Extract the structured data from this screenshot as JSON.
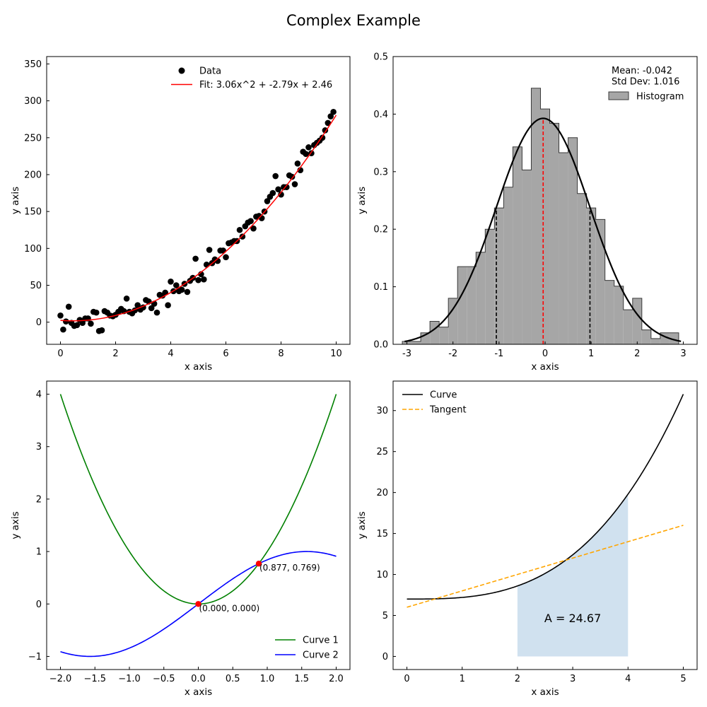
{
  "suptitle": "Complex Example",
  "colors": {
    "data_points": "#000000",
    "fit_line": "#ff0000",
    "hist_fill": "#a6a6a6",
    "hist_edge": "#3a3a3a",
    "normal_curve": "#000000",
    "mean_line": "#ff0000",
    "sd_lines": "#000000",
    "curve1": "#008000",
    "curve2": "#0000ff",
    "intersection": "#ff0000",
    "curve": "#000000",
    "tangent": "#ffa500",
    "area_fill": "#d0e1ef"
  },
  "chart_data": [
    {
      "type": "scatter",
      "xlabel": "x axis",
      "ylabel": "y axis",
      "xlim": [
        -0.5,
        10.5
      ],
      "ylim": [
        -30,
        360
      ],
      "xticks": [
        0,
        2,
        4,
        6,
        8,
        10
      ],
      "yticks": [
        0,
        50,
        100,
        150,
        200,
        250,
        300,
        350
      ],
      "legend_position": "top-right",
      "series": [
        {
          "name": "Data",
          "kind": "scatter",
          "points": [
            [
              0.0,
              9
            ],
            [
              0.1,
              -10
            ],
            [
              0.2,
              1
            ],
            [
              0.3,
              21
            ],
            [
              0.4,
              -1
            ],
            [
              0.5,
              -5
            ],
            [
              0.6,
              -4
            ],
            [
              0.7,
              3
            ],
            [
              0.8,
              -1
            ],
            [
              0.9,
              5
            ],
            [
              1.0,
              5
            ],
            [
              1.1,
              -2
            ],
            [
              1.2,
              14
            ],
            [
              1.3,
              13
            ],
            [
              1.4,
              -12
            ],
            [
              1.5,
              -11
            ],
            [
              1.6,
              15
            ],
            [
              1.7,
              13
            ],
            [
              1.8,
              9
            ],
            [
              1.9,
              8
            ],
            [
              2.0,
              10
            ],
            [
              2.1,
              14
            ],
            [
              2.2,
              18
            ],
            [
              2.3,
              15
            ],
            [
              2.4,
              32
            ],
            [
              2.5,
              14
            ],
            [
              2.6,
              12
            ],
            [
              2.7,
              16
            ],
            [
              2.8,
              23
            ],
            [
              2.9,
              17
            ],
            [
              3.0,
              20
            ],
            [
              3.1,
              30
            ],
            [
              3.2,
              28
            ],
            [
              3.3,
              19
            ],
            [
              3.4,
              25
            ],
            [
              3.5,
              13
            ],
            [
              3.6,
              37
            ],
            [
              3.7,
              36
            ],
            [
              3.8,
              40
            ],
            [
              3.9,
              23
            ],
            [
              4.0,
              55
            ],
            [
              4.1,
              42
            ],
            [
              4.2,
              50
            ],
            [
              4.3,
              42
            ],
            [
              4.4,
              44
            ],
            [
              4.5,
              52
            ],
            [
              4.6,
              41
            ],
            [
              4.7,
              56
            ],
            [
              4.8,
              60
            ],
            [
              4.9,
              86
            ],
            [
              5.0,
              57
            ],
            [
              5.1,
              65
            ],
            [
              5.2,
              58
            ],
            [
              5.3,
              78
            ],
            [
              5.4,
              98
            ],
            [
              5.5,
              80
            ],
            [
              5.6,
              85
            ],
            [
              5.7,
              83
            ],
            [
              5.8,
              97
            ],
            [
              5.9,
              97
            ],
            [
              6.0,
              88
            ],
            [
              6.1,
              107
            ],
            [
              6.2,
              108
            ],
            [
              6.3,
              110
            ],
            [
              6.4,
              110
            ],
            [
              6.5,
              125
            ],
            [
              6.6,
              116
            ],
            [
              6.7,
              130
            ],
            [
              6.8,
              135
            ],
            [
              6.9,
              137
            ],
            [
              7.0,
              127
            ],
            [
              7.1,
              143
            ],
            [
              7.2,
              144
            ],
            [
              7.3,
              141
            ],
            [
              7.4,
              150
            ],
            [
              7.5,
              164
            ],
            [
              7.6,
              170
            ],
            [
              7.7,
              175
            ],
            [
              7.8,
              198
            ],
            [
              7.9,
              180
            ],
            [
              8.0,
              173
            ],
            [
              8.1,
              183
            ],
            [
              8.2,
              183
            ],
            [
              8.3,
              199
            ],
            [
              8.4,
              197
            ],
            [
              8.5,
              187
            ],
            [
              8.6,
              215
            ],
            [
              8.7,
              206
            ],
            [
              8.8,
              231
            ],
            [
              8.9,
              228
            ],
            [
              9.0,
              237
            ],
            [
              9.1,
              229
            ],
            [
              9.2,
              240
            ],
            [
              9.3,
              243
            ],
            [
              9.4,
              246
            ],
            [
              9.5,
              250
            ],
            [
              9.6,
              260
            ],
            [
              9.7,
              270
            ],
            [
              9.8,
              279
            ],
            [
              9.9,
              285
            ]
          ]
        },
        {
          "name": "Fit: 3.06x^2 + -2.79x + 2.46",
          "kind": "line",
          "coefficients": [
            3.06,
            -2.79,
            2.46
          ],
          "x_range": [
            0,
            10
          ]
        }
      ]
    },
    {
      "type": "bar",
      "xlabel": "x axis",
      "ylabel": "y axis",
      "xlim": [
        -3.3,
        3.3
      ],
      "ylim": [
        0,
        0.5
      ],
      "xticks": [
        -3,
        -2,
        -1,
        0,
        1,
        2,
        3
      ],
      "yticks": [
        0.0,
        0.1,
        0.2,
        0.3,
        0.4,
        0.5
      ],
      "legend_position": "top-right",
      "annotations": [
        "Mean: -0.042",
        "Std Dev: 1.016"
      ],
      "mean": -0.042,
      "std": 1.016,
      "bin_start": -3.1,
      "bin_width": 0.2,
      "series": [
        {
          "name": "Histogram",
          "kind": "histogram",
          "values": [
            0.005,
            0.005,
            0.02,
            0.04,
            0.03,
            0.08,
            0.135,
            0.135,
            0.16,
            0.2,
            0.237,
            0.273,
            0.343,
            0.303,
            0.445,
            0.409,
            0.384,
            0.333,
            0.359,
            0.262,
            0.237,
            0.217,
            0.111,
            0.101,
            0.06,
            0.08,
            0.025,
            0.01,
            0.02,
            0.02
          ]
        },
        {
          "name": "",
          "kind": "normal-pdf-line",
          "x_range": [
            -3.05,
            2.95
          ]
        }
      ]
    },
    {
      "type": "line",
      "xlabel": "x axis",
      "ylabel": "y axis",
      "xlim": [
        -2.2,
        2.2
      ],
      "ylim": [
        -1.25,
        4.25
      ],
      "xticks": [
        -2.0,
        -1.5,
        -1.0,
        -0.5,
        0.0,
        0.5,
        1.0,
        1.5,
        2.0
      ],
      "xtick_labels": [
        "−2.0",
        "−1.5",
        "−1.0",
        "−0.5",
        "0.0",
        "0.5",
        "1.0",
        "1.5",
        "2.0"
      ],
      "yticks": [
        -1,
        0,
        1,
        2,
        3,
        4
      ],
      "ytick_labels": [
        "−1",
        "0",
        "1",
        "2",
        "3",
        "4"
      ],
      "legend_position": "bottom-right",
      "series": [
        {
          "name": "Curve 1",
          "kind": "line",
          "function": "x^2",
          "x_range": [
            -2,
            2
          ]
        },
        {
          "name": "Curve 2",
          "kind": "line",
          "function": "sin(x)",
          "x_range": [
            -2,
            2
          ]
        }
      ],
      "intersections": [
        {
          "x": 0.0,
          "y": 0.0,
          "label": "(0.000, 0.000)"
        },
        {
          "x": 0.877,
          "y": 0.769,
          "label": "(0.877, 0.769)"
        }
      ]
    },
    {
      "type": "line",
      "xlabel": "x axis",
      "ylabel": "y axis",
      "xlim": [
        -0.25,
        5.25
      ],
      "ylim": [
        -1.6,
        33.6
      ],
      "xticks": [
        0,
        1,
        2,
        3,
        4,
        5
      ],
      "yticks": [
        0,
        5,
        10,
        15,
        20,
        25,
        30
      ],
      "legend_position": "top-left",
      "series": [
        {
          "name": "Curve",
          "kind": "line",
          "function": "x^3/5 + 7",
          "x_range": [
            0,
            5
          ]
        },
        {
          "name": "Tangent",
          "kind": "dashed-line",
          "function": "2x + 6",
          "x_range": [
            0,
            5
          ]
        }
      ],
      "shaded_area": {
        "x_range": [
          2,
          4
        ],
        "label": "A = 24.67"
      }
    }
  ]
}
